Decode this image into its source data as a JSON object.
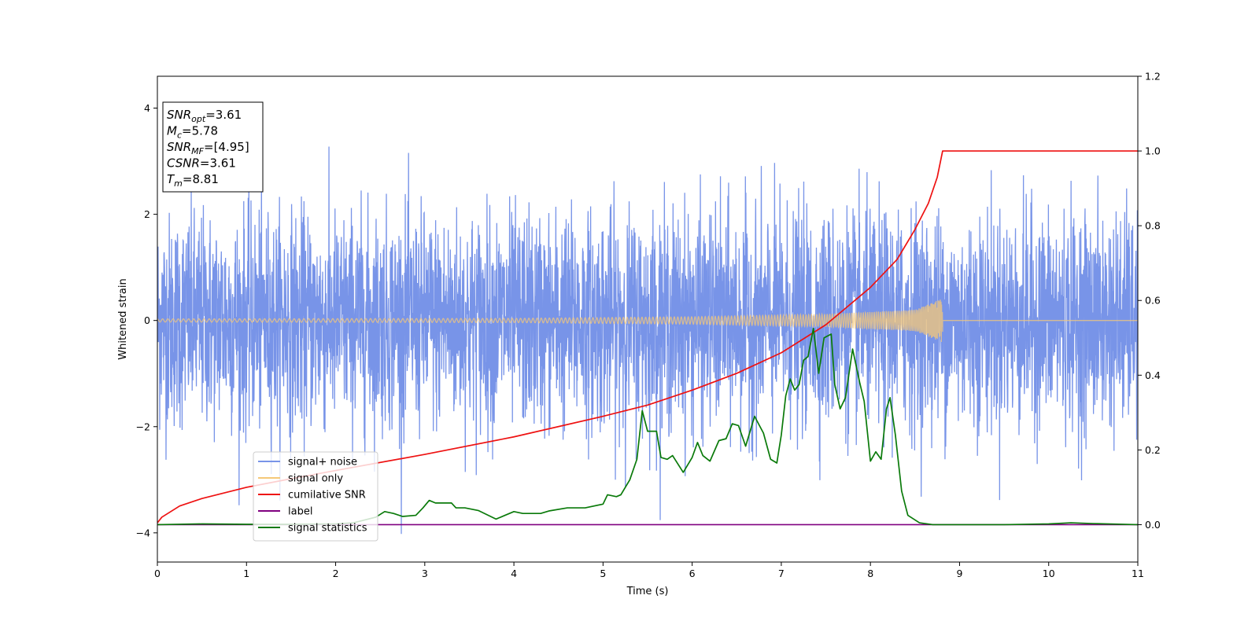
{
  "chart_data": {
    "type": "line",
    "title": "",
    "xlabel": "Time (s)",
    "ylabel": "Whitened strain",
    "y2label": "",
    "xlim": [
      0,
      11
    ],
    "ylim": [
      -4.55,
      4.6
    ],
    "y2lim": [
      -0.1,
      1.2
    ],
    "x_ticks": [
      "0",
      "1",
      "2",
      "3",
      "4",
      "5",
      "6",
      "7",
      "8",
      "9",
      "10",
      "11"
    ],
    "y_ticks": [
      {
        "value": 4,
        "label": "4"
      },
      {
        "value": 2,
        "label": "2"
      },
      {
        "value": 0,
        "label": "0"
      },
      {
        "value": -2,
        "label": "−2"
      },
      {
        "value": -4,
        "label": "−4"
      }
    ],
    "y2_ticks": [
      "1.2",
      "1.0",
      "0.8",
      "0.6",
      "0.4",
      "0.2",
      "0.0"
    ],
    "grid": false,
    "legend_position": "lower-left",
    "series": [
      {
        "name": "signal+ noise",
        "axis": "left",
        "color": "#7894e8",
        "style": "noise",
        "noise_sigma": 1.0,
        "x_range": [
          0,
          11
        ]
      },
      {
        "name": "signal only",
        "axis": "left",
        "color": "#f5c878",
        "style": "chirp",
        "x_range": [
          0,
          8.81
        ],
        "envelope": [
          [
            0,
            0.03
          ],
          [
            4,
            0.04
          ],
          [
            6,
            0.07
          ],
          [
            7.5,
            0.12
          ],
          [
            8.5,
            0.2
          ],
          [
            8.81,
            0.42
          ]
        ]
      },
      {
        "name": "cumilative SNR",
        "axis": "right",
        "color": "#ee1111",
        "points": [
          [
            0,
            0.005
          ],
          [
            0.05,
            0.02
          ],
          [
            0.25,
            0.05
          ],
          [
            0.5,
            0.07
          ],
          [
            1,
            0.1
          ],
          [
            1.5,
            0.123
          ],
          [
            2,
            0.145
          ],
          [
            3,
            0.188
          ],
          [
            4,
            0.235
          ],
          [
            5,
            0.29
          ],
          [
            5.5,
            0.32
          ],
          [
            6,
            0.36
          ],
          [
            6.5,
            0.405
          ],
          [
            7,
            0.46
          ],
          [
            7.5,
            0.535
          ],
          [
            8,
            0.635
          ],
          [
            8.3,
            0.71
          ],
          [
            8.5,
            0.79
          ],
          [
            8.65,
            0.86
          ],
          [
            8.75,
            0.93
          ],
          [
            8.81,
            1.0
          ],
          [
            11,
            1.0
          ]
        ]
      },
      {
        "name": "label",
        "axis": "right",
        "color": "#800080",
        "points": [
          [
            0,
            0.0
          ],
          [
            11,
            0.0
          ]
        ]
      },
      {
        "name": "signal statistics",
        "axis": "right",
        "color": "#0a7a0a",
        "points": [
          [
            0,
            0.0
          ],
          [
            0.5,
            0.002
          ],
          [
            1,
            0.001
          ],
          [
            1.5,
            0.001
          ],
          [
            2,
            0.002
          ],
          [
            2.2,
            0.005
          ],
          [
            2.45,
            0.02
          ],
          [
            2.55,
            0.035
          ],
          [
            2.65,
            0.03
          ],
          [
            2.75,
            0.022
          ],
          [
            2.9,
            0.025
          ],
          [
            2.98,
            0.045
          ],
          [
            3.05,
            0.065
          ],
          [
            3.12,
            0.058
          ],
          [
            3.3,
            0.058
          ],
          [
            3.35,
            0.045
          ],
          [
            3.45,
            0.045
          ],
          [
            3.6,
            0.038
          ],
          [
            3.8,
            0.015
          ],
          [
            3.9,
            0.025
          ],
          [
            4,
            0.035
          ],
          [
            4.1,
            0.03
          ],
          [
            4.3,
            0.03
          ],
          [
            4.4,
            0.037
          ],
          [
            4.6,
            0.045
          ],
          [
            4.8,
            0.045
          ],
          [
            5,
            0.055
          ],
          [
            5.05,
            0.08
          ],
          [
            5.15,
            0.075
          ],
          [
            5.2,
            0.08
          ],
          [
            5.3,
            0.12
          ],
          [
            5.38,
            0.175
          ],
          [
            5.44,
            0.305
          ],
          [
            5.5,
            0.25
          ],
          [
            5.6,
            0.25
          ],
          [
            5.65,
            0.18
          ],
          [
            5.72,
            0.175
          ],
          [
            5.78,
            0.185
          ],
          [
            5.9,
            0.14
          ],
          [
            6.0,
            0.18
          ],
          [
            6.06,
            0.22
          ],
          [
            6.12,
            0.185
          ],
          [
            6.2,
            0.17
          ],
          [
            6.3,
            0.225
          ],
          [
            6.38,
            0.23
          ],
          [
            6.45,
            0.27
          ],
          [
            6.52,
            0.265
          ],
          [
            6.6,
            0.21
          ],
          [
            6.7,
            0.29
          ],
          [
            6.8,
            0.245
          ],
          [
            6.88,
            0.175
          ],
          [
            6.95,
            0.165
          ],
          [
            7.0,
            0.24
          ],
          [
            7.05,
            0.345
          ],
          [
            7.1,
            0.39
          ],
          [
            7.15,
            0.36
          ],
          [
            7.2,
            0.375
          ],
          [
            7.25,
            0.44
          ],
          [
            7.3,
            0.45
          ],
          [
            7.36,
            0.525
          ],
          [
            7.42,
            0.405
          ],
          [
            7.48,
            0.5
          ],
          [
            7.56,
            0.51
          ],
          [
            7.6,
            0.375
          ],
          [
            7.66,
            0.31
          ],
          [
            7.72,
            0.34
          ],
          [
            7.8,
            0.47
          ],
          [
            7.88,
            0.38
          ],
          [
            7.93,
            0.33
          ],
          [
            8.0,
            0.17
          ],
          [
            8.06,
            0.195
          ],
          [
            8.12,
            0.175
          ],
          [
            8.18,
            0.31
          ],
          [
            8.22,
            0.34
          ],
          [
            8.28,
            0.24
          ],
          [
            8.35,
            0.09
          ],
          [
            8.42,
            0.025
          ],
          [
            8.55,
            0.005
          ],
          [
            8.7,
            0.0
          ],
          [
            9,
            0.0
          ],
          [
            9.5,
            0.0
          ],
          [
            10,
            0.002
          ],
          [
            10.25,
            0.005
          ],
          [
            10.5,
            0.003
          ],
          [
            11,
            0.0
          ]
        ]
      }
    ],
    "annotations": [
      {
        "sym": "SNR",
        "sub": "opt",
        "rest": "=3.61"
      },
      {
        "sym": "M",
        "sub": "c",
        "rest": "=5.78"
      },
      {
        "sym": "SNR",
        "sub": "MF",
        "rest": "=[4.95]"
      },
      {
        "sym": "CSNR",
        "sub": "",
        "rest": "=3.61"
      },
      {
        "sym": "T",
        "sub": "m",
        "rest": "=8.81"
      }
    ]
  }
}
